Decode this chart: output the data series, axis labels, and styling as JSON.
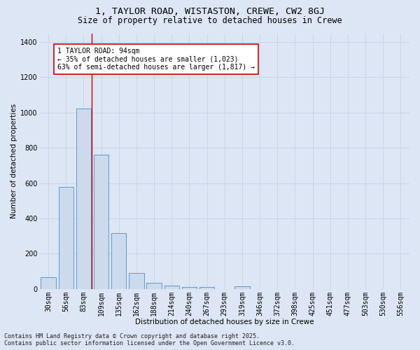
{
  "title_line1": "1, TAYLOR ROAD, WISTASTON, CREWE, CW2 8GJ",
  "title_line2": "Size of property relative to detached houses in Crewe",
  "xlabel": "Distribution of detached houses by size in Crewe",
  "ylabel": "Number of detached properties",
  "bar_color": "#ccdaeb",
  "bar_edge_color": "#5b9bd5",
  "grid_color": "#c8d4e4",
  "background_color": "#dce6f5",
  "categories": [
    "30sqm",
    "56sqm",
    "83sqm",
    "109sqm",
    "135sqm",
    "162sqm",
    "188sqm",
    "214sqm",
    "240sqm",
    "267sqm",
    "293sqm",
    "319sqm",
    "346sqm",
    "372sqm",
    "398sqm",
    "425sqm",
    "451sqm",
    "477sqm",
    "503sqm",
    "530sqm",
    "556sqm"
  ],
  "values": [
    65,
    580,
    1023,
    760,
    315,
    90,
    35,
    20,
    12,
    10,
    0,
    15,
    0,
    0,
    0,
    0,
    0,
    0,
    0,
    0,
    0
  ],
  "ylim": [
    0,
    1450
  ],
  "yticks": [
    0,
    200,
    400,
    600,
    800,
    1000,
    1200,
    1400
  ],
  "red_line_x": 2.45,
  "annotation_text": "1 TAYLOR ROAD: 94sqm\n← 35% of detached houses are smaller (1,023)\n63% of semi-detached houses are larger (1,817) →",
  "annotation_box_color": "#ffffff",
  "annotation_box_edge_color": "#cc0000",
  "footer_line1": "Contains HM Land Registry data © Crown copyright and database right 2025.",
  "footer_line2": "Contains public sector information licensed under the Open Government Licence v3.0.",
  "title_fontsize": 9.5,
  "subtitle_fontsize": 8.5,
  "axis_label_fontsize": 7.5,
  "tick_fontsize": 7,
  "annotation_fontsize": 7,
  "footer_fontsize": 6
}
